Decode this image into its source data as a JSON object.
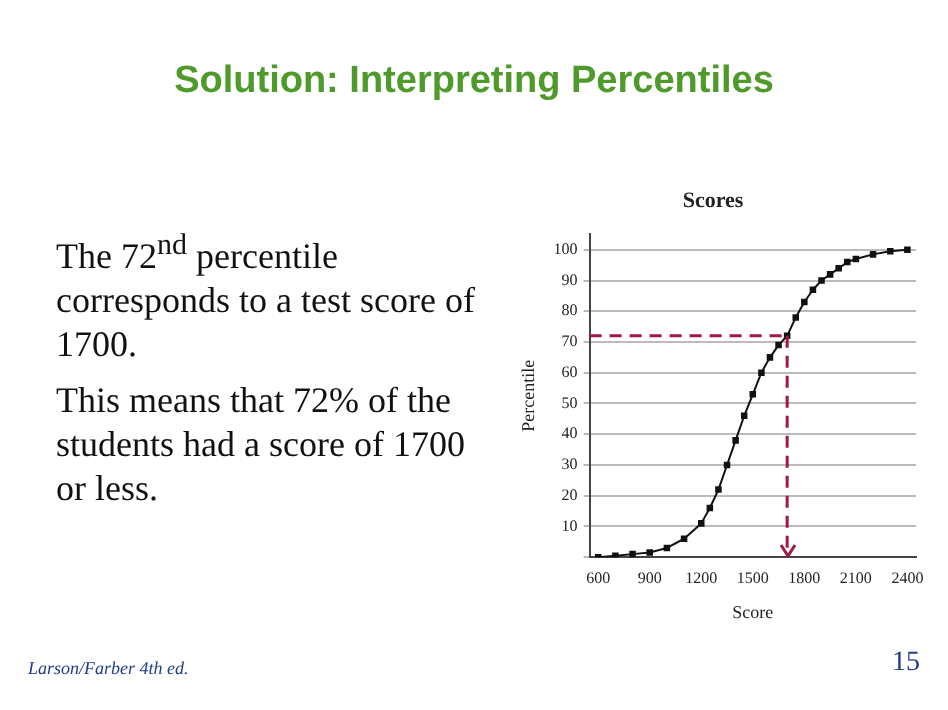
{
  "chart_data": {
    "type": "line",
    "title": "Solution: Interpreting Percentiles",
    "subtitle": "Scores",
    "xlabel": "Score",
    "ylabel": "Percentile",
    "x": [
      600,
      700,
      800,
      900,
      1000,
      1100,
      1200,
      1250,
      1300,
      1350,
      1400,
      1450,
      1500,
      1550,
      1600,
      1650,
      1700,
      1750,
      1800,
      1850,
      1900,
      1950,
      2000,
      2050,
      2100,
      2200,
      2300,
      2400
    ],
    "series": [
      {
        "color": "#111111",
        "values": [
          0,
          0.5,
          1,
          1.5,
          3,
          6,
          11,
          16,
          22,
          30,
          38,
          46,
          53,
          60,
          65,
          69,
          72,
          78,
          83,
          87,
          90,
          92,
          94,
          96,
          97,
          98.5,
          99.5,
          100
        ]
      }
    ],
    "xlim": [
      550,
      2450
    ],
    "xticks": [
      600,
      900,
      1200,
      1500,
      1800,
      2100,
      2400
    ],
    "ylim": [
      0,
      105
    ],
    "yticks": [
      {
        "value": 0,
        "label": null
      },
      10,
      20,
      30,
      40,
      50,
      60,
      70,
      80,
      90,
      100
    ],
    "grid": "y",
    "marker": "square",
    "line_style": "solid",
    "legend": false,
    "ref_lines": [
      {
        "axis": "y",
        "value": 72,
        "color": "#a3174a",
        "line_style": "dashed"
      },
      {
        "axis": "x",
        "value": 1700,
        "color": "#a3174a",
        "line_style": "dashed"
      }
    ],
    "annotations": [
      "The 72$^{nd}$ percentile corresponds to a test score of 1700.",
      "This means that 72% of the students had a score of 1700 or less.",
      "Larson/Farber 4th ed.",
      "15"
    ]
  }
}
